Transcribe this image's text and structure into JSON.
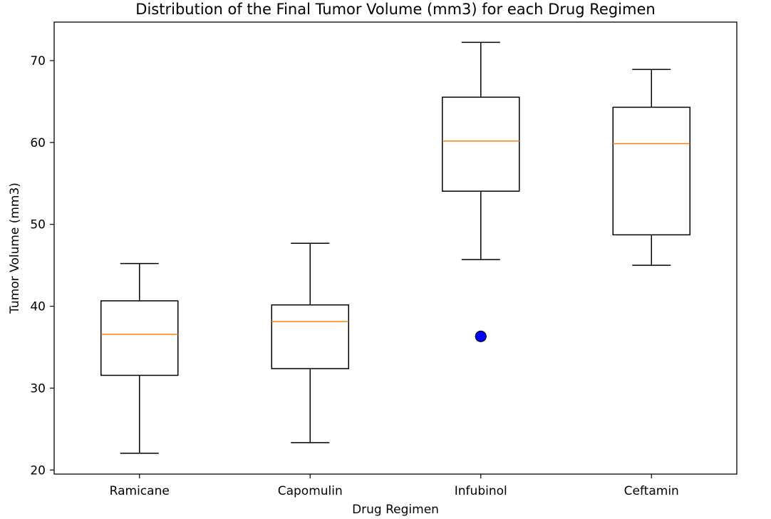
{
  "chart_data": {
    "type": "box",
    "title": "Distribution of the Final Tumor Volume (mm3) for each Drug Regimen",
    "xlabel": "Drug Regimen",
    "ylabel": "Tumor Volume (mm3)",
    "ylim": [
      19.5,
      74.7
    ],
    "yticks": [
      20,
      30,
      40,
      50,
      60,
      70
    ],
    "grid": false,
    "categories": [
      "Ramicane",
      "Capomulin",
      "Infubinol",
      "Ceftamin"
    ],
    "boxes": [
      {
        "name": "Ramicane",
        "whisker_low": 22.05,
        "q1": 31.56,
        "median": 36.56,
        "q3": 40.66,
        "whisker_high": 45.22,
        "outliers": []
      },
      {
        "name": "Capomulin",
        "whisker_low": 23.34,
        "q1": 32.38,
        "median": 38.13,
        "q3": 40.16,
        "whisker_high": 47.69,
        "outliers": []
      },
      {
        "name": "Infubinol",
        "whisker_low": 45.7,
        "q1": 54.05,
        "median": 60.17,
        "q3": 65.53,
        "whisker_high": 72.23,
        "outliers": [
          36.32
        ]
      },
      {
        "name": "Ceftamin",
        "whisker_low": 45.0,
        "q1": 48.72,
        "median": 59.85,
        "q3": 64.3,
        "whisker_high": 68.92,
        "outliers": []
      }
    ],
    "colors": {
      "box": "#000000",
      "median": "#ff7f0e",
      "outlier": "#0000ff"
    }
  }
}
